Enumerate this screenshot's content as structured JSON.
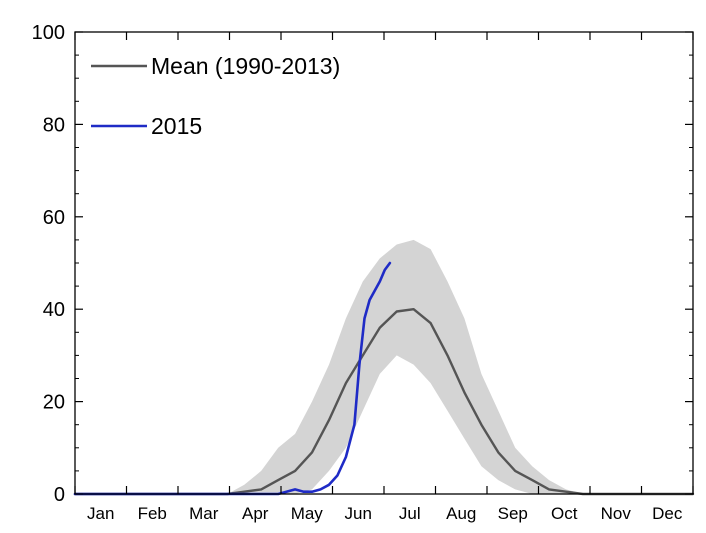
{
  "chart_data": {
    "type": "line",
    "title": "",
    "xlabel": "",
    "ylabel": "",
    "ylim": [
      0,
      100
    ],
    "xlim": [
      0,
      365
    ],
    "y_ticks": [
      0,
      20,
      40,
      60,
      80,
      100
    ],
    "y_tick_labels": [
      "0",
      "20",
      "40",
      "60",
      "80",
      "100"
    ],
    "months": [
      "Jan",
      "Feb",
      "Mar",
      "Apr",
      "May",
      "Jun",
      "Jul",
      "Aug",
      "Sep",
      "Oct",
      "Nov",
      "Dec"
    ],
    "grid": false,
    "legend_position": "top-left",
    "series": [
      {
        "name": "Mean (1990-2013)",
        "color": "#555555",
        "x": [
          0,
          90,
          100,
          110,
          120,
          130,
          140,
          150,
          160,
          170,
          180,
          190,
          200,
          210,
          220,
          230,
          240,
          250,
          260,
          270,
          280,
          290,
          300,
          365
        ],
        "y": [
          0,
          0,
          0.5,
          1,
          3,
          5,
          9,
          16,
          24,
          30,
          36,
          39.5,
          40,
          37,
          30,
          22,
          15,
          9,
          5,
          3,
          1,
          0.5,
          0,
          0
        ]
      },
      {
        "name": "2015",
        "color": "#1f2bc6",
        "x": [
          0,
          120,
          130,
          135,
          140,
          145,
          150,
          155,
          160,
          165,
          168,
          171,
          174,
          177,
          180,
          183,
          186
        ],
        "y": [
          0,
          0,
          1,
          0.5,
          0.5,
          1,
          2,
          4,
          8,
          15,
          28,
          38,
          42,
          44,
          46,
          48.5,
          50
        ]
      }
    ],
    "range_band": {
      "color": "#d4d4d4",
      "x": [
        0,
        90,
        100,
        110,
        120,
        130,
        140,
        150,
        160,
        170,
        180,
        190,
        200,
        210,
        220,
        230,
        240,
        250,
        260,
        270,
        280,
        290,
        300,
        365
      ],
      "lower": [
        0,
        0,
        0,
        0,
        0,
        0,
        1,
        5,
        10,
        18,
        26,
        30,
        28,
        24,
        18,
        12,
        6,
        3,
        1,
        0,
        0,
        0,
        0,
        0
      ],
      "upper": [
        0,
        0,
        2,
        5,
        10,
        13,
        20,
        28,
        38,
        46,
        51,
        54,
        55,
        53,
        46,
        38,
        26,
        18,
        10,
        6,
        3,
        1,
        0,
        0
      ]
    }
  }
}
